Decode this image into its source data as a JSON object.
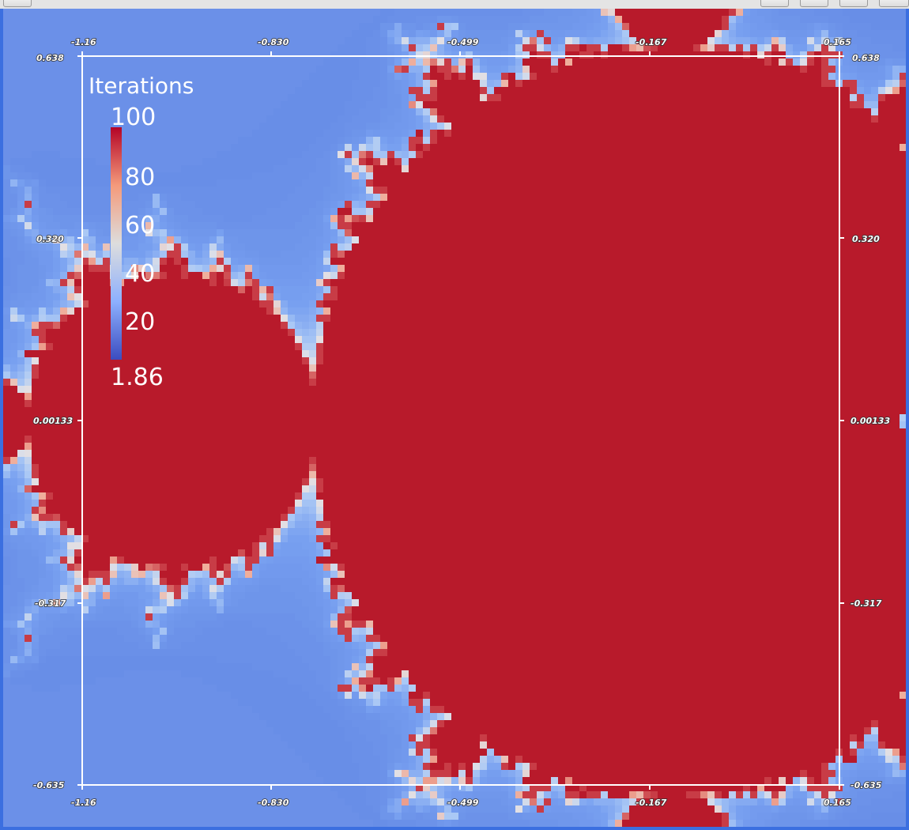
{
  "toolbar": {
    "buttons": [
      "view-split-horizontal",
      "view-split-vertical",
      "view-maximize",
      "view-close"
    ]
  },
  "render_view": {
    "scalar_name": "Iterations",
    "colormap": {
      "low_color": "#3b4cc0",
      "mid_color": "#dddddd",
      "high_color": "#b40426",
      "range": [
        1.86,
        100
      ]
    },
    "legend": {
      "title": "Iterations",
      "max_label": "100",
      "min_label": "1.86",
      "tick_labels": [
        "80",
        "60",
        "40",
        "20"
      ]
    },
    "cube_axes": {
      "x_ticks": [
        "-1.16",
        "-0.830",
        "-0.499",
        "-0.167",
        "0.165"
      ],
      "y_ticks": [
        "0.638",
        "0.320",
        "0.00133",
        "-0.317",
        "-0.635"
      ]
    },
    "colors": {
      "exterior_blue": "#6b90e8",
      "set_red": "#b81a2b",
      "view_border": "#3b6fe0"
    }
  }
}
